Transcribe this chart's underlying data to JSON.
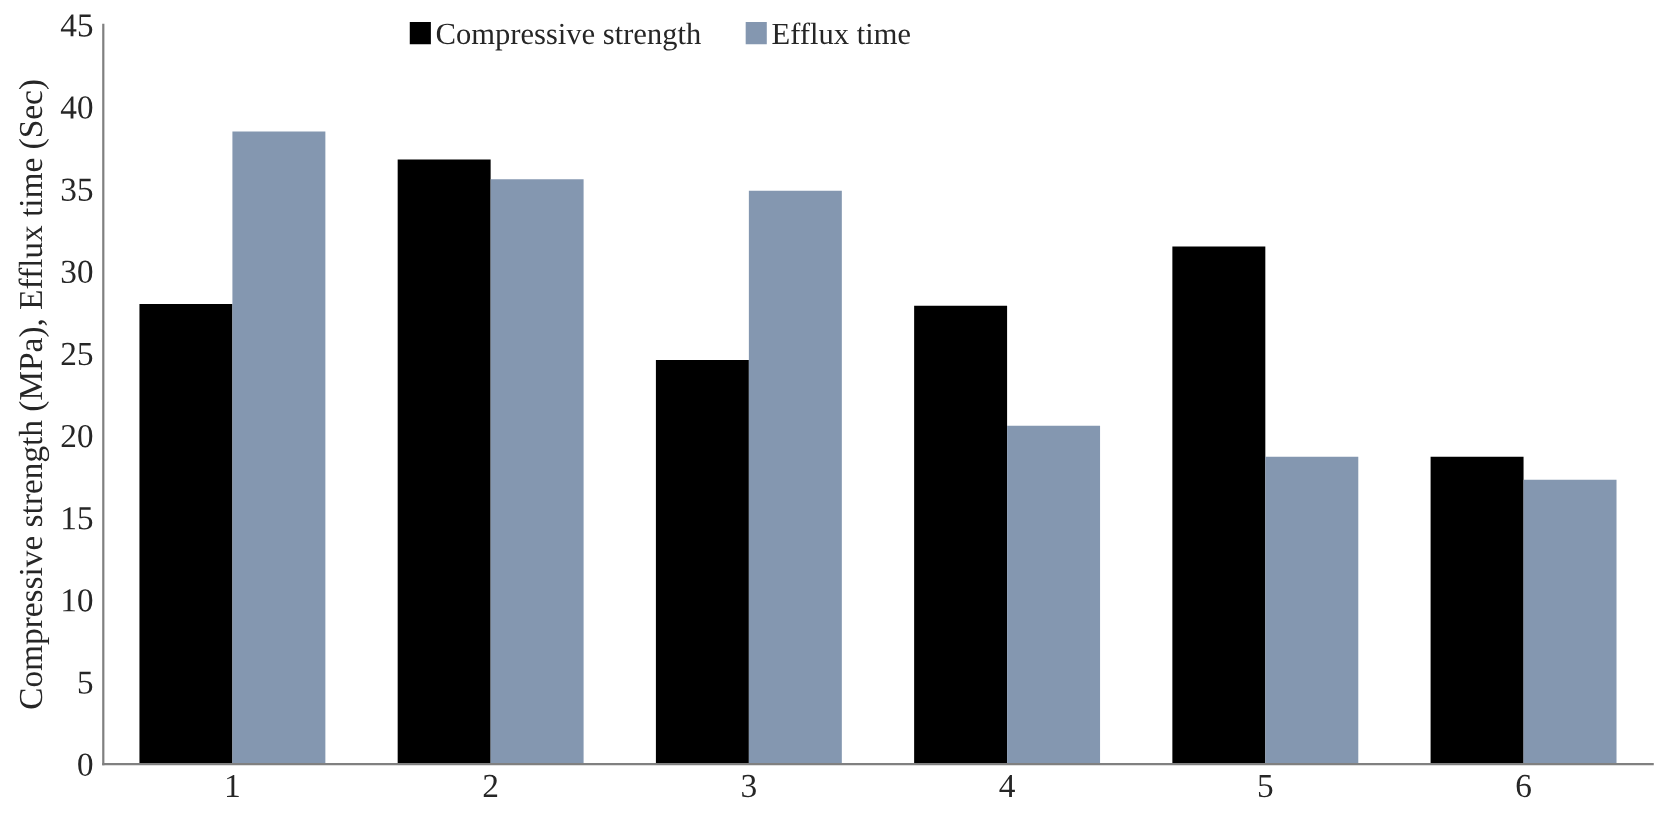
{
  "chart_data": {
    "type": "bar",
    "ylabel": "Compressive strength (MPa), Efflux time (Sec)",
    "categories": [
      "1",
      "2",
      "3",
      "4",
      "5",
      "6"
    ],
    "series": [
      {
        "name": "Compressive strength",
        "color": "#000000",
        "values": [
          28.0,
          36.8,
          24.6,
          27.9,
          31.5,
          18.7
        ]
      },
      {
        "name": "Efflux time",
        "color": "#8497b0",
        "values": [
          38.5,
          35.6,
          34.9,
          20.6,
          18.7,
          17.3
        ]
      }
    ],
    "ylim": [
      0,
      45
    ],
    "yticks": [
      0,
      5,
      10,
      15,
      20,
      25,
      30,
      35,
      40,
      45
    ],
    "grid": false,
    "legend": "top"
  }
}
